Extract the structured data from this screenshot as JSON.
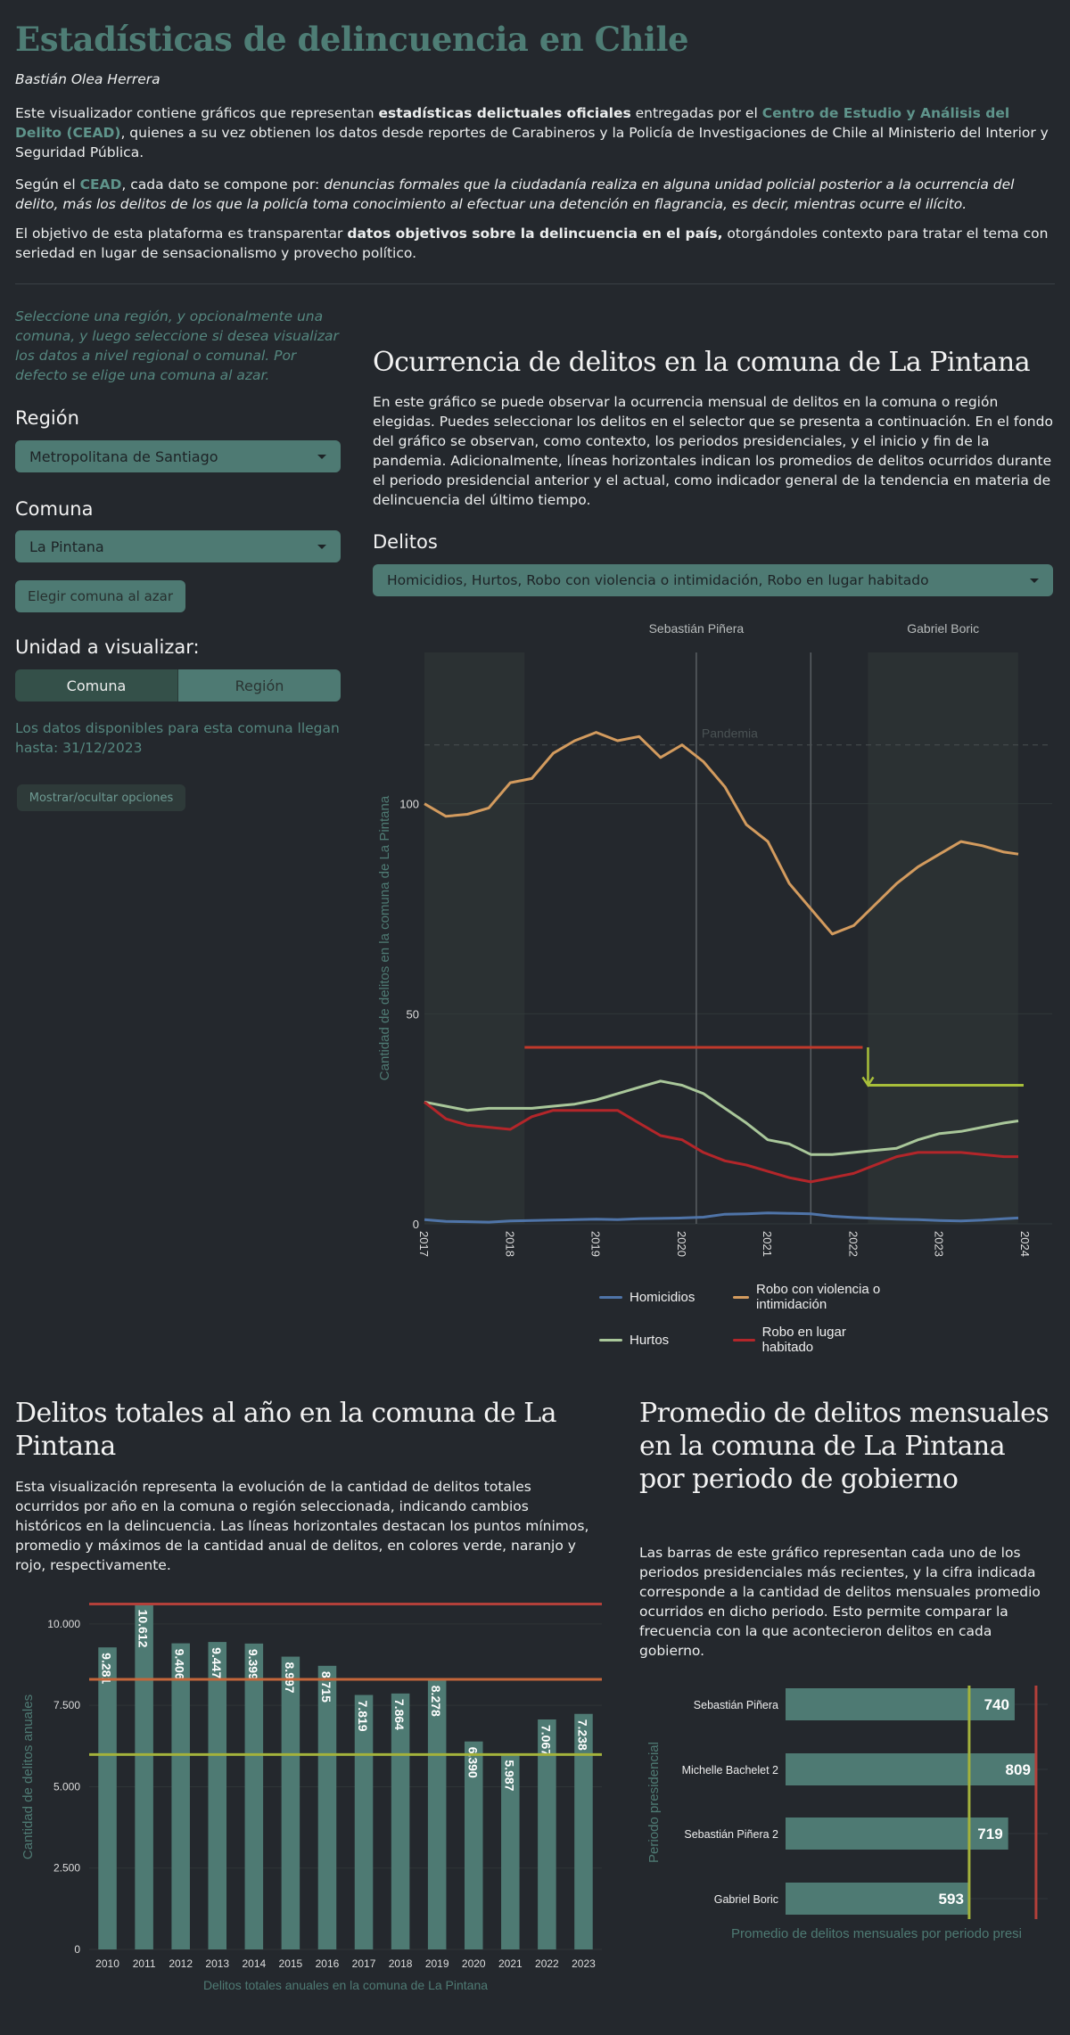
{
  "header": {
    "title": "Estadísticas de delincuencia en Chile",
    "author": "Bastián Olea Herrera",
    "p1": {
      "a": "Este visualizador contiene gráficos que representan ",
      "b": "estadísticas delictuales oficiales",
      "c": " entregadas por el ",
      "link": "Centro de Estudio y Análisis del Delito (CEAD)",
      "d": ", quienes a su vez obtienen los datos desde reportes de Carabineros y la Policía de Investigaciones de Chile al Ministerio del Interior y Seguridad Pública."
    },
    "p2": {
      "a": "Según el ",
      "link": "CEAD",
      "b": ", cada dato se compone por: ",
      "c": "denuncias formales que la ciudadanía realiza en alguna unidad policial posterior a la ocurrencia del delito, más los delitos de los que la policía toma conocimiento al efectuar una detención en flagrancia, es decir, mientras ocurre el ilícito."
    },
    "p3": {
      "a": "El objetivo de esta plataforma es transparentar ",
      "b": "datos objetivos sobre la delincuencia en el país,",
      "c": " otorgándoles contexto para tratar el tema con seriedad en lugar de sensacionalismo y provecho político."
    }
  },
  "sidebar": {
    "intro": "Seleccione una región, y opcionalmente una comuna, y luego seleccione si desea visualizar los datos a nivel regional o comunal. Por defecto se elige una comuna al azar.",
    "region_label": "Región",
    "region_value": "Metropolitana de Santiago",
    "comuna_label": "Comuna",
    "comuna_value": "La Pintana",
    "random_button": "Elegir comuna al azar",
    "unit_label": "Unidad a visualizar:",
    "unit_options": [
      "Comuna",
      "Región"
    ],
    "unit_selected": "Comuna",
    "availability": "Los datos disponibles para esta comuna llegan hasta: 31/12/2023",
    "toggle_button": "Mostrar/ocultar opciones"
  },
  "main": {
    "title": "Ocurrencia de delitos en la comuna de La Pintana",
    "description": "En este gráfico se puede observar la ocurrencia mensual de delitos en la comuna o región elegidas. Puedes seleccionar los delitos en el selector que se presenta a continuación. En el fondo del gráfico se observan, como contexto, los periodos presidenciales, y el inicio y fin de la pandemia. Adicionalmente, líneas horizontales indican los promedios de delitos ocurridos durante el periodo presidencial anterior y el actual, como indicador general de la tendencia en materia de delincuencia del último tiempo.",
    "delitos_label": "Delitos",
    "delitos_value": "Homicidios, Hurtos, Robo con violencia o intimidación, Robo en lugar habitado"
  },
  "section2": {
    "title": "Delitos totales al año en la comuna de La Pintana",
    "description": "Esta visualización representa la evolución de la cantidad de delitos totales ocurridos por año en la comuna o región seleccionada, indicando cambios históricos en la delincuencia. Las líneas horizontales destacan los puntos mínimos, promedio y máximos de la cantidad anual de delitos, en colores verde, naranjo y rojo, respectivamente."
  },
  "section3": {
    "title": "Promedio de delitos mensuales en la comuna de La Pintana por periodo de gobierno",
    "description": "Las barras de este gráfico representan cada uno de los periodos presidenciales más recientes, y la cifra indicada corresponde a la cantidad de delitos mensuales promedio ocurridos en dicho periodo. Esto permite comparar la frecuencia con la que acontecieron delitos en cada gobierno."
  },
  "chart_data": [
    {
      "type": "line",
      "ylabel": "Cantidad de delitos en la comuna de La Pintana",
      "xlabel": "",
      "ylim": [
        0,
        136
      ],
      "xlim": [
        "2017-01",
        "2024-01"
      ],
      "xticks": [
        "2017",
        "2018",
        "2019",
        "2020",
        "2021",
        "2022",
        "2023",
        "2024"
      ],
      "yticks": [
        0,
        50,
        100
      ],
      "x": [
        "2017-01",
        "2017-04",
        "2017-07",
        "2017-10",
        "2018-01",
        "2018-04",
        "2018-07",
        "2018-10",
        "2019-01",
        "2019-04",
        "2019-07",
        "2019-10",
        "2020-01",
        "2020-04",
        "2020-07",
        "2020-10",
        "2021-01",
        "2021-04",
        "2021-07",
        "2021-10",
        "2022-01",
        "2022-04",
        "2022-07",
        "2022-10",
        "2023-01",
        "2023-04",
        "2023-07",
        "2023-10",
        "2023-12"
      ],
      "series": [
        {
          "name": "Homicidios",
          "color": "#4f74a8",
          "values": [
            1,
            0.6,
            0.5,
            0.4,
            0.7,
            0.8,
            0.9,
            1,
            1.1,
            1,
            1.2,
            1.3,
            1.4,
            1.6,
            2.3,
            2.4,
            2.6,
            2.5,
            2.4,
            1.8,
            1.5,
            1.3,
            1.1,
            1,
            0.8,
            0.7,
            0.9,
            1.2,
            1.4
          ]
        },
        {
          "name": "Hurtos",
          "color": "#a9c79a",
          "values": [
            29,
            28,
            27,
            27.5,
            27.5,
            27.5,
            28,
            28.5,
            29.5,
            31,
            32.5,
            34,
            33,
            31,
            27.5,
            24,
            20,
            19,
            16.5,
            16.5,
            17,
            17.5,
            18,
            20,
            21.5,
            22,
            23,
            24,
            24.5
          ]
        },
        {
          "name": "Robo con violencia o intimidación",
          "color": "#d39b5e",
          "values": [
            100,
            97,
            97.5,
            99,
            105,
            106,
            112,
            115,
            117,
            115,
            116,
            111,
            114,
            110,
            104,
            95,
            91,
            81,
            75,
            69,
            71,
            76,
            81,
            85,
            88,
            91,
            90,
            88.5,
            88
          ]
        },
        {
          "name": "Robo en lugar habitado",
          "color": "#b3262a",
          "values": [
            29,
            25,
            23.5,
            23,
            22.5,
            25.5,
            27,
            27,
            27,
            27,
            24,
            21,
            20,
            17,
            15,
            14,
            12.5,
            11,
            10,
            11,
            12,
            14,
            16,
            17,
            17,
            17,
            16.5,
            16,
            16
          ]
        }
      ],
      "periods": [
        {
          "name": "",
          "start": "2017-01",
          "end": "2018-03",
          "shaded": true
        },
        {
          "name": "Sebastián Piñera",
          "start": "2018-03",
          "end": "2022-03",
          "shaded": false
        },
        {
          "name": "Gabriel Boric",
          "start": "2022-03",
          "end": "2023-12",
          "shaded": true
        }
      ],
      "pandemic": {
        "label": "Pandemia",
        "start": "2020-03",
        "end": "2021-07",
        "label_y": 114
      },
      "averages": [
        {
          "name": "previous",
          "value": 42,
          "start": "2018-03",
          "end": "2022-03",
          "color": "#c0392b"
        },
        {
          "name": "current",
          "value": 33,
          "start": "2022-03",
          "end": "2023-12",
          "color": "#a8bf3a"
        }
      ]
    },
    {
      "type": "bar",
      "xlabel": "Delitos totales anuales en la comuna de La Pintana",
      "ylabel": "Cantidad de delitos anuales",
      "ylim": [
        0,
        10600
      ],
      "yticks": [
        "0",
        "2.500",
        "5.000",
        "7.500",
        "10.000"
      ],
      "ytick_values": [
        0,
        2500,
        5000,
        7500,
        10000
      ],
      "categories": [
        "2010",
        "2011",
        "2012",
        "2013",
        "2014",
        "2015",
        "2016",
        "2017",
        "2018",
        "2019",
        "2020",
        "2021",
        "2022",
        "2023"
      ],
      "values": [
        9281,
        10612,
        9406,
        9447,
        9399,
        8997,
        8715,
        7819,
        7864,
        8278,
        6390,
        5987,
        7067,
        7238
      ],
      "labels": [
        "9.281",
        "10.612",
        "9.406",
        "9.447",
        "9.399",
        "8.997",
        "8.715",
        "7.819",
        "7.864",
        "8.278",
        "6.390",
        "5.987",
        "7.067",
        "7.238"
      ],
      "hlines": [
        {
          "name": "max",
          "value": 10612,
          "color": "#b3403a"
        },
        {
          "name": "mean",
          "value": 8300,
          "color": "#c4663a"
        },
        {
          "name": "min",
          "value": 5987,
          "color": "#a3b23c"
        }
      ],
      "bar_color": "#4e7a73"
    },
    {
      "type": "bar",
      "orientation": "horizontal",
      "xlabel": "Promedio de delitos mensuales por periodo presi",
      "ylabel": "Periodo presidencial",
      "xlim": [
        0,
        815
      ],
      "categories": [
        "Sebastián Piñera",
        "Michelle Bachelet  2",
        "Sebastián Piñera  2",
        "Gabriel Boric"
      ],
      "values": [
        740,
        809,
        719,
        593
      ],
      "labels": [
        "740",
        "809",
        "719",
        "593"
      ],
      "vlines": [
        {
          "name": "min",
          "value": 593,
          "color": "#a3b23c"
        },
        {
          "name": "max",
          "value": 809,
          "color": "#b3403a"
        }
      ],
      "bar_color": "#4e7a73"
    }
  ]
}
